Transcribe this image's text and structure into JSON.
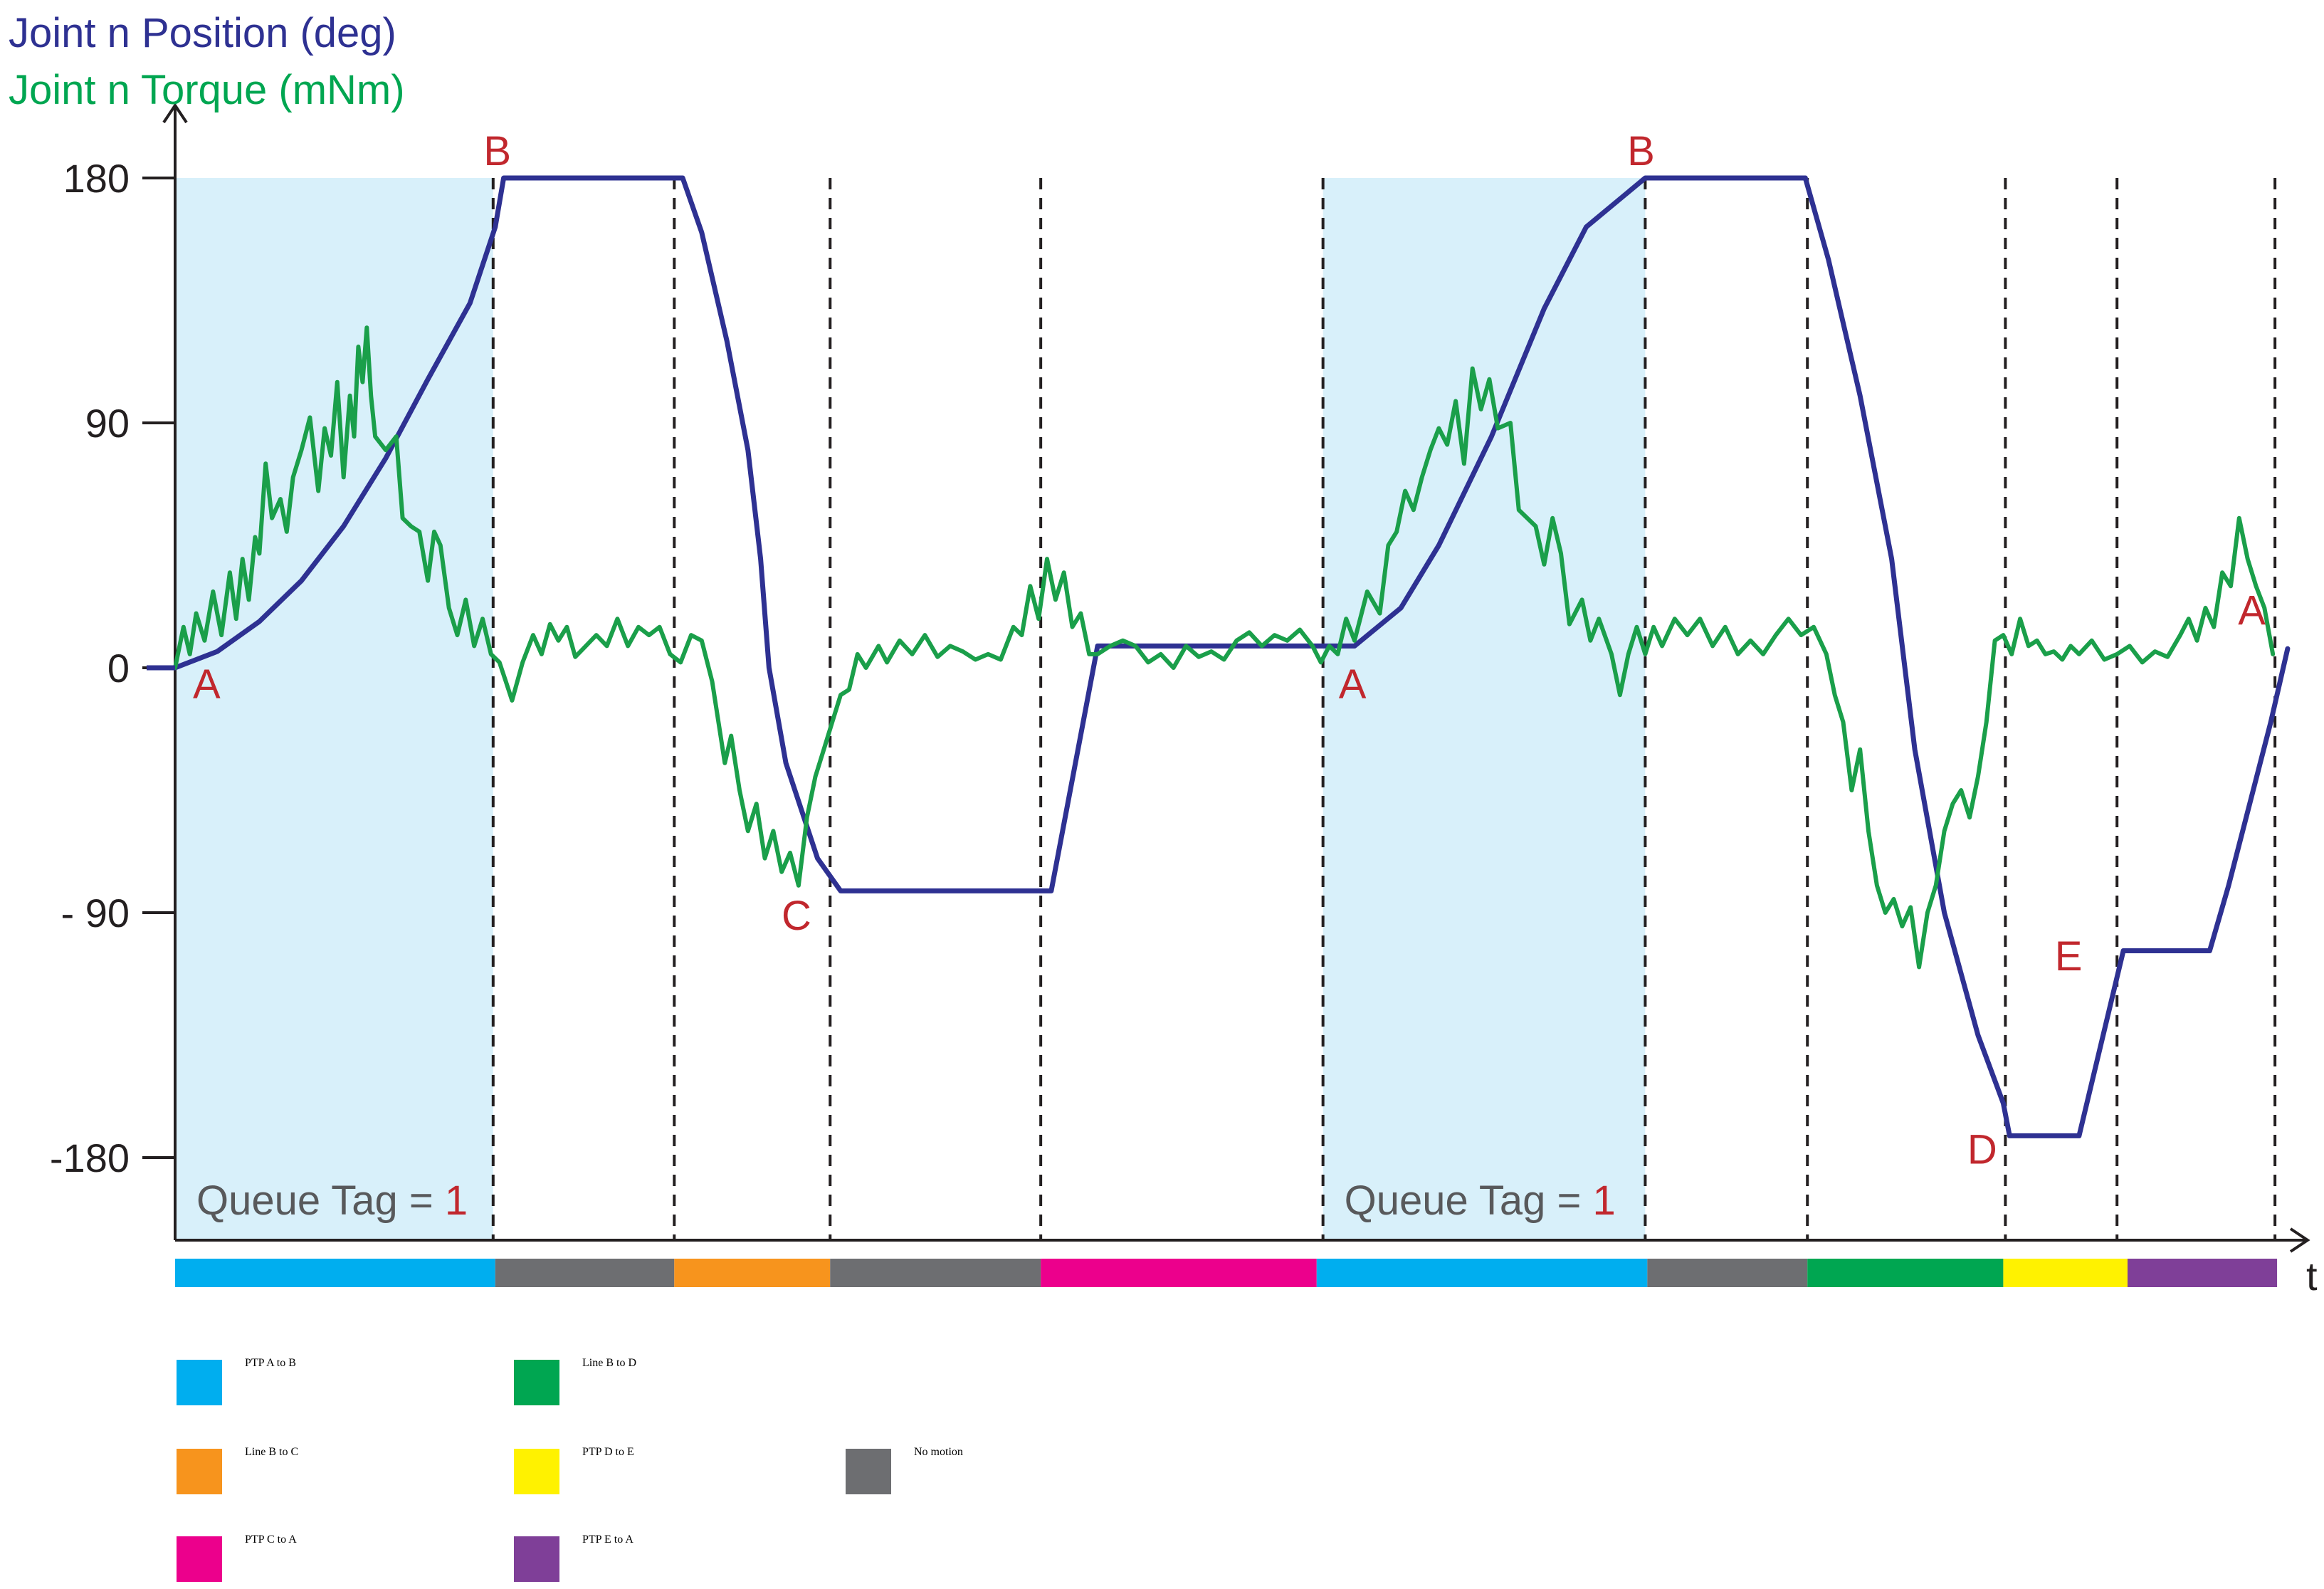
{
  "chart_data": {
    "type": "line",
    "titles": [
      {
        "text": "Joint n Position (deg)",
        "color": "#2e3192"
      },
      {
        "text": "Joint n Torque (mNm)",
        "color": "#00a651"
      }
    ],
    "xlabel": "t",
    "yticks": [
      {
        "value": 180,
        "label": "180"
      },
      {
        "value": 90,
        "label": "90"
      },
      {
        "value": 0,
        "label": "0"
      },
      {
        "value": -90,
        "label": "- 90"
      },
      {
        "value": -180,
        "label": "-180"
      }
    ],
    "ylim": [
      -210,
      200
    ],
    "xlim": [
      0,
      1
    ],
    "colors": {
      "position": "#2e3192",
      "torque": "#1a9f4a",
      "highlight": "#d8f0fa",
      "point_label": "#c1272d",
      "axis": "#231f20"
    },
    "series": [
      {
        "name": "Joint n Position (deg)",
        "color": "#2e3192",
        "points": [
          [
            0.0,
            0
          ],
          [
            0.02,
            6
          ],
          [
            0.04,
            17
          ],
          [
            0.06,
            32
          ],
          [
            0.08,
            52
          ],
          [
            0.1,
            77
          ],
          [
            0.12,
            106
          ],
          [
            0.14,
            134
          ],
          [
            0.152,
            162
          ],
          [
            0.156,
            180
          ],
          [
            0.241,
            180
          ],
          [
            0.25,
            160
          ],
          [
            0.262,
            120
          ],
          [
            0.272,
            80
          ],
          [
            0.278,
            40
          ],
          [
            0.282,
            0
          ],
          [
            0.29,
            -35
          ],
          [
            0.305,
            -70
          ],
          [
            0.316,
            -82
          ],
          [
            0.416,
            -82
          ],
          [
            0.438,
            8
          ],
          [
            0.541,
            8
          ],
          [
            0.56,
            8
          ],
          [
            0.582,
            22
          ],
          [
            0.6,
            45
          ],
          [
            0.625,
            85
          ],
          [
            0.65,
            132
          ],
          [
            0.67,
            162
          ],
          [
            0.698,
            180
          ],
          [
            0.774,
            180
          ],
          [
            0.785,
            150
          ],
          [
            0.8,
            100
          ],
          [
            0.815,
            40
          ],
          [
            0.826,
            -30
          ],
          [
            0.84,
            -90
          ],
          [
            0.856,
            -135
          ],
          [
            0.868,
            -160
          ],
          [
            0.871,
            -172
          ],
          [
            0.904,
            -172
          ],
          [
            0.925,
            -104
          ],
          [
            0.966,
            -104
          ],
          [
            0.975,
            -80
          ],
          [
            0.985,
            -50
          ],
          [
            0.995,
            -20
          ],
          [
            1.003,
            7
          ]
        ]
      },
      {
        "name": "Joint n Torque (mNm)",
        "color": "#1a9f4a",
        "points": [
          [
            0.0,
            0
          ],
          [
            0.004,
            15
          ],
          [
            0.007,
            5
          ],
          [
            0.01,
            20
          ],
          [
            0.014,
            10
          ],
          [
            0.018,
            28
          ],
          [
            0.022,
            12
          ],
          [
            0.026,
            35
          ],
          [
            0.029,
            18
          ],
          [
            0.032,
            40
          ],
          [
            0.035,
            25
          ],
          [
            0.038,
            48
          ],
          [
            0.04,
            42
          ],
          [
            0.043,
            75
          ],
          [
            0.046,
            55
          ],
          [
            0.05,
            62
          ],
          [
            0.053,
            50
          ],
          [
            0.056,
            70
          ],
          [
            0.06,
            80
          ],
          [
            0.064,
            92
          ],
          [
            0.068,
            65
          ],
          [
            0.071,
            88
          ],
          [
            0.074,
            78
          ],
          [
            0.077,
            105
          ],
          [
            0.08,
            70
          ],
          [
            0.083,
            100
          ],
          [
            0.085,
            85
          ],
          [
            0.087,
            118
          ],
          [
            0.089,
            105
          ],
          [
            0.091,
            125
          ],
          [
            0.093,
            100
          ],
          [
            0.095,
            85
          ],
          [
            0.1,
            80
          ],
          [
            0.105,
            85
          ],
          [
            0.108,
            55
          ],
          [
            0.112,
            52
          ],
          [
            0.116,
            50
          ],
          [
            0.12,
            32
          ],
          [
            0.123,
            50
          ],
          [
            0.126,
            45
          ],
          [
            0.13,
            22
          ],
          [
            0.134,
            12
          ],
          [
            0.138,
            25
          ],
          [
            0.142,
            8
          ],
          [
            0.146,
            18
          ],
          [
            0.15,
            5
          ],
          [
            0.154,
            2
          ],
          [
            0.157,
            -5
          ],
          [
            0.16,
            -12
          ],
          [
            0.165,
            2
          ],
          [
            0.17,
            12
          ],
          [
            0.174,
            5
          ],
          [
            0.178,
            16
          ],
          [
            0.182,
            10
          ],
          [
            0.186,
            15
          ],
          [
            0.19,
            4
          ],
          [
            0.195,
            8
          ],
          [
            0.2,
            12
          ],
          [
            0.205,
            8
          ],
          [
            0.21,
            18
          ],
          [
            0.215,
            8
          ],
          [
            0.22,
            15
          ],
          [
            0.225,
            12
          ],
          [
            0.23,
            15
          ],
          [
            0.235,
            5
          ],
          [
            0.24,
            2
          ],
          [
            0.245,
            12
          ],
          [
            0.25,
            10
          ],
          [
            0.255,
            -5
          ],
          [
            0.258,
            -20
          ],
          [
            0.261,
            -35
          ],
          [
            0.264,
            -25
          ],
          [
            0.268,
            -45
          ],
          [
            0.272,
            -60
          ],
          [
            0.276,
            -50
          ],
          [
            0.28,
            -70
          ],
          [
            0.284,
            -60
          ],
          [
            0.288,
            -75
          ],
          [
            0.292,
            -68
          ],
          [
            0.296,
            -80
          ],
          [
            0.3,
            -55
          ],
          [
            0.304,
            -40
          ],
          [
            0.308,
            -30
          ],
          [
            0.312,
            -20
          ],
          [
            0.316,
            -10
          ],
          [
            0.32,
            -8
          ],
          [
            0.324,
            5
          ],
          [
            0.328,
            0
          ],
          [
            0.334,
            8
          ],
          [
            0.338,
            2
          ],
          [
            0.344,
            10
          ],
          [
            0.35,
            5
          ],
          [
            0.356,
            12
          ],
          [
            0.362,
            4
          ],
          [
            0.368,
            8
          ],
          [
            0.374,
            6
          ],
          [
            0.38,
            3
          ],
          [
            0.386,
            5
          ],
          [
            0.392,
            3
          ],
          [
            0.398,
            15
          ],
          [
            0.402,
            12
          ],
          [
            0.406,
            30
          ],
          [
            0.41,
            18
          ],
          [
            0.414,
            40
          ],
          [
            0.418,
            25
          ],
          [
            0.422,
            35
          ],
          [
            0.426,
            15
          ],
          [
            0.43,
            20
          ],
          [
            0.434,
            5
          ],
          [
            0.438,
            5
          ],
          [
            0.444,
            8
          ],
          [
            0.45,
            10
          ],
          [
            0.456,
            8
          ],
          [
            0.462,
            2
          ],
          [
            0.468,
            5
          ],
          [
            0.474,
            0
          ],
          [
            0.48,
            8
          ],
          [
            0.486,
            4
          ],
          [
            0.492,
            6
          ],
          [
            0.498,
            3
          ],
          [
            0.504,
            10
          ],
          [
            0.51,
            13
          ],
          [
            0.516,
            8
          ],
          [
            0.522,
            12
          ],
          [
            0.528,
            10
          ],
          [
            0.534,
            14
          ],
          [
            0.54,
            8
          ],
          [
            0.544,
            2
          ],
          [
            0.548,
            8
          ],
          [
            0.552,
            5
          ],
          [
            0.556,
            18
          ],
          [
            0.56,
            10
          ],
          [
            0.566,
            28
          ],
          [
            0.572,
            20
          ],
          [
            0.576,
            45
          ],
          [
            0.58,
            50
          ],
          [
            0.584,
            65
          ],
          [
            0.588,
            58
          ],
          [
            0.592,
            70
          ],
          [
            0.596,
            80
          ],
          [
            0.6,
            88
          ],
          [
            0.604,
            82
          ],
          [
            0.608,
            98
          ],
          [
            0.612,
            75
          ],
          [
            0.616,
            110
          ],
          [
            0.62,
            95
          ],
          [
            0.624,
            106
          ],
          [
            0.628,
            88
          ],
          [
            0.634,
            90
          ],
          [
            0.638,
            58
          ],
          [
            0.642,
            55
          ],
          [
            0.646,
            52
          ],
          [
            0.65,
            38
          ],
          [
            0.654,
            55
          ],
          [
            0.658,
            42
          ],
          [
            0.662,
            16
          ],
          [
            0.668,
            25
          ],
          [
            0.672,
            10
          ],
          [
            0.676,
            18
          ],
          [
            0.682,
            5
          ],
          [
            0.686,
            -10
          ],
          [
            0.69,
            5
          ],
          [
            0.694,
            15
          ],
          [
            0.698,
            5
          ],
          [
            0.702,
            15
          ],
          [
            0.706,
            8
          ],
          [
            0.712,
            18
          ],
          [
            0.718,
            12
          ],
          [
            0.724,
            18
          ],
          [
            0.73,
            8
          ],
          [
            0.736,
            15
          ],
          [
            0.742,
            5
          ],
          [
            0.748,
            10
          ],
          [
            0.754,
            5
          ],
          [
            0.76,
            12
          ],
          [
            0.766,
            18
          ],
          [
            0.772,
            12
          ],
          [
            0.778,
            15
          ],
          [
            0.784,
            5
          ],
          [
            0.788,
            -10
          ],
          [
            0.792,
            -20
          ],
          [
            0.796,
            -45
          ],
          [
            0.8,
            -30
          ],
          [
            0.804,
            -60
          ],
          [
            0.808,
            -80
          ],
          [
            0.812,
            -90
          ],
          [
            0.816,
            -85
          ],
          [
            0.82,
            -95
          ],
          [
            0.824,
            -88
          ],
          [
            0.828,
            -110
          ],
          [
            0.832,
            -90
          ],
          [
            0.836,
            -80
          ],
          [
            0.84,
            -60
          ],
          [
            0.844,
            -50
          ],
          [
            0.848,
            -45
          ],
          [
            0.852,
            -55
          ],
          [
            0.856,
            -40
          ],
          [
            0.86,
            -20
          ],
          [
            0.864,
            10
          ],
          [
            0.868,
            12
          ],
          [
            0.872,
            5
          ],
          [
            0.876,
            18
          ],
          [
            0.88,
            8
          ],
          [
            0.884,
            10
          ],
          [
            0.888,
            5
          ],
          [
            0.892,
            6
          ],
          [
            0.896,
            3
          ],
          [
            0.9,
            8
          ],
          [
            0.904,
            5
          ],
          [
            0.91,
            10
          ],
          [
            0.916,
            3
          ],
          [
            0.922,
            5
          ],
          [
            0.928,
            8
          ],
          [
            0.934,
            2
          ],
          [
            0.94,
            6
          ],
          [
            0.946,
            4
          ],
          [
            0.952,
            12
          ],
          [
            0.956,
            18
          ],
          [
            0.96,
            10
          ],
          [
            0.964,
            22
          ],
          [
            0.968,
            15
          ],
          [
            0.972,
            35
          ],
          [
            0.976,
            30
          ],
          [
            0.98,
            55
          ],
          [
            0.984,
            40
          ],
          [
            0.988,
            30
          ],
          [
            0.992,
            22
          ],
          [
            0.996,
            5
          ]
        ]
      }
    ],
    "point_labels": [
      {
        "text": "A",
        "x": 0.015,
        "y": -6
      },
      {
        "text": "B",
        "x": 0.153,
        "y": 190
      },
      {
        "text": "C",
        "x": 0.295,
        "y": -91
      },
      {
        "text": "A",
        "x": 0.559,
        "y": -6
      },
      {
        "text": "B",
        "x": 0.696,
        "y": 190
      },
      {
        "text": "D",
        "x": 0.858,
        "y": -177
      },
      {
        "text": "E",
        "x": 0.899,
        "y": -106
      },
      {
        "text": "A",
        "x": 0.986,
        "y": 21
      }
    ],
    "queue_tags": [
      {
        "x_start": 0.0,
        "x_end": 0.151,
        "label": "Queue Tag = ",
        "value": "1"
      },
      {
        "x_start": 0.545,
        "x_end": 0.698,
        "label": "Queue Tag = ",
        "value": "1"
      }
    ],
    "event_lines_x": [
      0.151,
      0.237,
      0.311,
      0.411,
      0.545,
      0.698,
      0.775,
      0.869,
      0.922,
      0.997
    ],
    "timeline_segments": [
      {
        "start": 0.0,
        "end": 0.152,
        "category": "PTP A to B"
      },
      {
        "start": 0.152,
        "end": 0.237,
        "category": "No motion"
      },
      {
        "start": 0.237,
        "end": 0.311,
        "category": "Line B to C"
      },
      {
        "start": 0.311,
        "end": 0.411,
        "category": "No motion"
      },
      {
        "start": 0.411,
        "end": 0.542,
        "category": "PTP C to A"
      },
      {
        "start": 0.542,
        "end": 0.699,
        "category": "PTP A to B"
      },
      {
        "start": 0.699,
        "end": 0.775,
        "category": "No motion"
      },
      {
        "start": 0.775,
        "end": 0.868,
        "category": "Line B to D"
      },
      {
        "start": 0.868,
        "end": 0.927,
        "category": "PTP D to E"
      },
      {
        "start": 0.927,
        "end": 0.998,
        "category": "PTP E to A"
      }
    ],
    "legend": [
      {
        "label": "PTP A to B",
        "color": "#00aeef"
      },
      {
        "label": "Line B to D",
        "color": "#00a651"
      },
      {
        "label": "Line B to C",
        "color": "#f7941d"
      },
      {
        "label": "PTP D to E",
        "color": "#fff200"
      },
      {
        "label": "No motion",
        "color": "#6d6e71"
      },
      {
        "label": "PTP C to A",
        "color": "#ec008c"
      },
      {
        "label": "PTP E to A",
        "color": "#7f3f98"
      }
    ],
    "grid": false
  }
}
